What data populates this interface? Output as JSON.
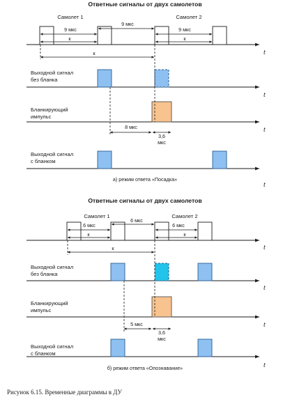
{
  "diagram_a": {
    "title": "Ответные сигналы от двух самолетов",
    "aircraft1": "Самолет 1",
    "aircraft2": "Самолет 2",
    "interval": "9 мкс",
    "k": "к",
    "t": "t",
    "out_no_blank_1": "Выходной сигнал",
    "out_no_blank_2": "без бланка",
    "blank_1": "Бланкирующий",
    "blank_2": "импульс",
    "delay": "8 мкс",
    "blank_width_1": "3,6",
    "blank_width_2": "мкс",
    "out_blank_1": "Выходной сигнал",
    "out_blank_2": "с бланком",
    "mode": "а) режим ответа «Посадка»"
  },
  "diagram_b": {
    "title": "Ответные сигналы от двух самолетов",
    "aircraft1": "Самолет 1",
    "aircraft2": "Самолет 2",
    "interval": "6 мкс",
    "k": "к",
    "t": "t",
    "out_no_blank_1": "Выходной сигнал",
    "out_no_blank_2": "без бланка",
    "blank_1": "Бланкирующий",
    "blank_2": "импульс",
    "delay": "5 мкс",
    "blank_width_1": "3,6",
    "blank_width_2": "мкс",
    "out_blank_1": "Выходной сигнал",
    "out_blank_2": "с бланком",
    "mode": "б)  режим ответа «Опознавание»"
  },
  "figure_caption": "Рисунок 6.15. Временные диаграммы в ДУ",
  "colors": {
    "output_pulse": "#8ec1f2",
    "suppressed_pulse_b": "#22c4ec",
    "blanking_pulse": "#f8c38e"
  }
}
